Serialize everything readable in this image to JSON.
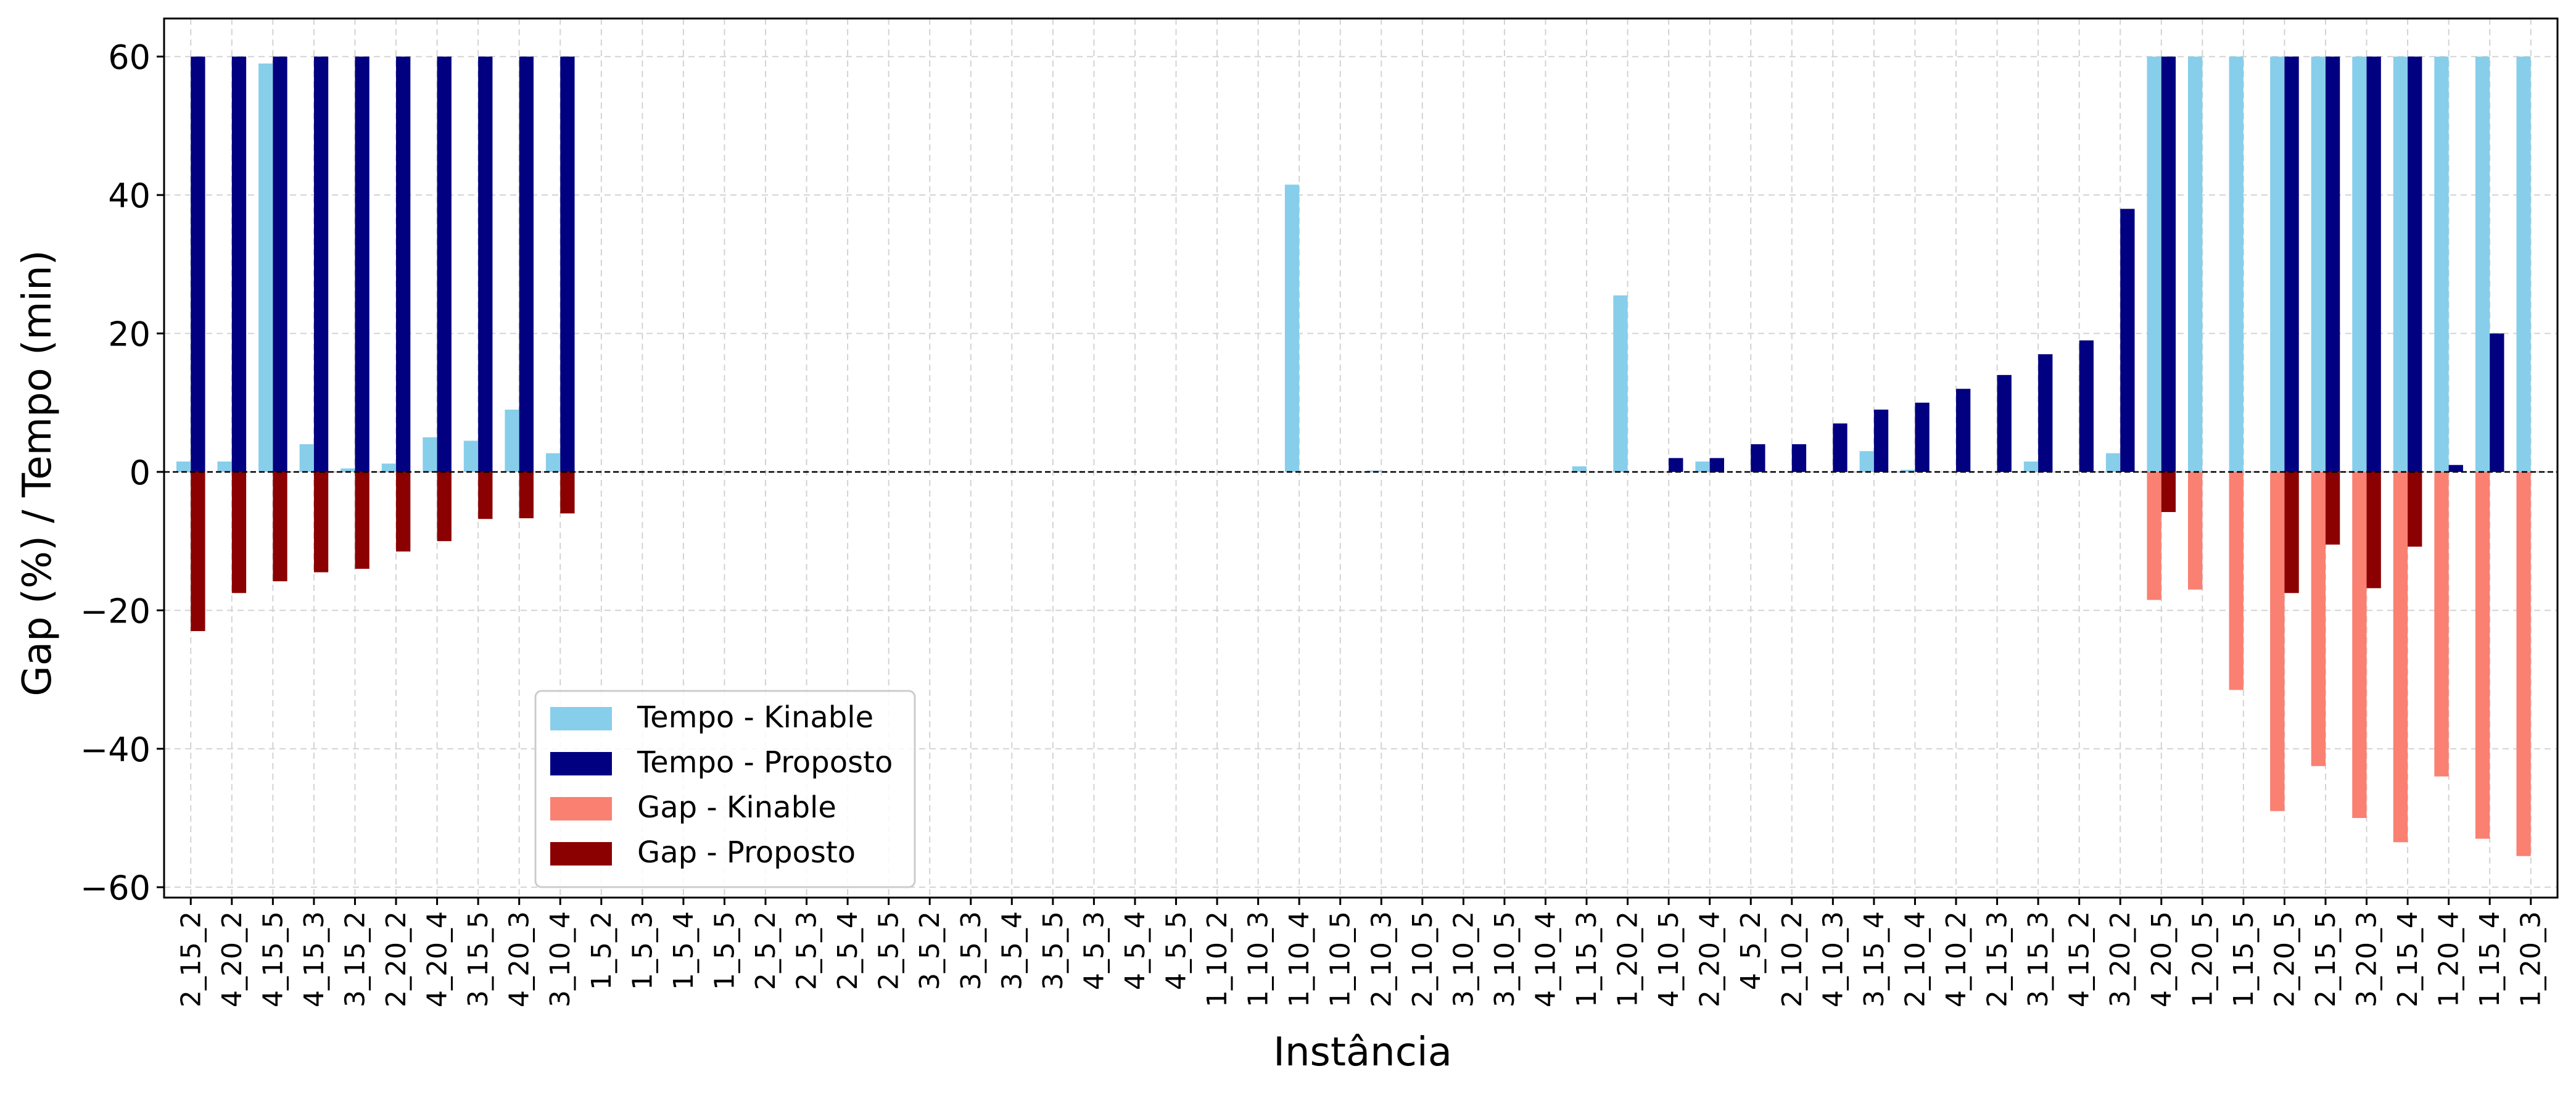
{
  "chart_data": {
    "type": "bar",
    "xlabel": "Instância",
    "ylabel": "Gap (%) / Tempo (min)",
    "ylim": [
      -61.5,
      65.5
    ],
    "yticks": [
      -60,
      -40,
      -20,
      0,
      20,
      40,
      60
    ],
    "grid": true,
    "legend_position": "lower-left",
    "categories": [
      "2_15_2",
      "4_20_2",
      "4_15_5",
      "4_15_3",
      "3_15_2",
      "2_20_2",
      "4_20_4",
      "3_15_5",
      "4_20_3",
      "3_10_4",
      "1_5_2",
      "1_5_3",
      "1_5_4",
      "1_5_5",
      "2_5_2",
      "2_5_3",
      "2_5_4",
      "2_5_5",
      "3_5_2",
      "3_5_3",
      "3_5_4",
      "3_5_5",
      "4_5_3",
      "4_5_4",
      "4_5_5",
      "1_10_2",
      "1_10_3",
      "1_10_4",
      "1_10_5",
      "2_10_3",
      "2_10_5",
      "3_10_2",
      "3_10_5",
      "4_10_4",
      "1_15_3",
      "1_20_2",
      "4_10_5",
      "2_20_4",
      "4_5_2",
      "2_10_2",
      "4_10_3",
      "3_15_4",
      "2_10_4",
      "4_10_2",
      "2_15_3",
      "3_15_3",
      "4_15_2",
      "3_20_2",
      "4_20_5",
      "1_20_5",
      "1_15_5",
      "2_20_5",
      "2_15_5",
      "3_20_3",
      "2_15_4",
      "1_20_4",
      "1_15_4",
      "1_20_3"
    ],
    "series": [
      {
        "name": "Tempo - Kinable",
        "color": "#87ceeb",
        "values": [
          1.5,
          1.5,
          59,
          4,
          0.5,
          1.2,
          5,
          4.5,
          9,
          2.7,
          0,
          0,
          0,
          0,
          0,
          0,
          0,
          0,
          0,
          0,
          0,
          0,
          0,
          0,
          0,
          0,
          0,
          41.5,
          0,
          0.2,
          0,
          0,
          0,
          0,
          0.8,
          25.5,
          0,
          1.5,
          0,
          0,
          0,
          3,
          0.3,
          0,
          0,
          1.5,
          0,
          2.7,
          60,
          60,
          60,
          60,
          60,
          60,
          60,
          60,
          60,
          60
        ]
      },
      {
        "name": "Tempo - Proposto",
        "color": "#000080",
        "values": [
          60,
          60,
          60,
          60,
          60,
          60,
          60,
          60,
          60,
          60,
          0,
          0,
          0,
          0,
          0,
          0,
          0,
          0,
          0,
          0,
          0,
          0,
          0,
          0,
          0,
          0,
          0,
          0,
          0,
          0,
          0,
          0,
          0,
          0,
          0,
          0,
          2,
          2,
          4,
          4,
          7,
          9,
          10,
          12,
          14,
          17,
          19,
          38,
          60,
          0,
          0,
          60,
          60,
          60,
          60,
          1,
          20,
          0
        ]
      },
      {
        "name": "Gap - Kinable",
        "color": "#fa8072",
        "values": [
          0,
          0,
          0,
          0,
          0,
          0,
          0,
          0,
          0,
          0,
          0,
          0,
          0,
          0,
          0,
          0,
          0,
          0,
          0,
          0,
          0,
          0,
          0,
          0,
          0,
          0,
          0,
          0,
          0,
          0,
          0,
          0,
          0,
          0,
          0,
          0,
          0,
          0,
          0,
          0,
          0,
          0,
          0,
          0,
          0,
          0,
          0,
          0,
          -18.5,
          -17,
          -31.5,
          -49,
          -42.5,
          -50,
          -53.5,
          -44,
          -53,
          -55.5
        ]
      },
      {
        "name": "Gap - Proposto",
        "color": "#8b0000",
        "values": [
          -23,
          -17.5,
          -15.8,
          -14.5,
          -14,
          -11.5,
          -10,
          -6.8,
          -6.7,
          -6,
          0,
          0,
          0,
          0,
          0,
          0,
          0,
          0,
          0,
          0,
          0,
          0,
          0,
          0,
          0,
          0,
          0,
          0,
          0,
          0,
          0,
          0,
          0,
          0,
          0,
          0,
          0,
          0,
          0,
          0,
          0,
          0,
          0,
          0,
          0,
          0,
          0,
          0,
          -5.8,
          0,
          0,
          -17.5,
          -10.5,
          -16.8,
          -10.8,
          0,
          0,
          0
        ]
      }
    ]
  }
}
